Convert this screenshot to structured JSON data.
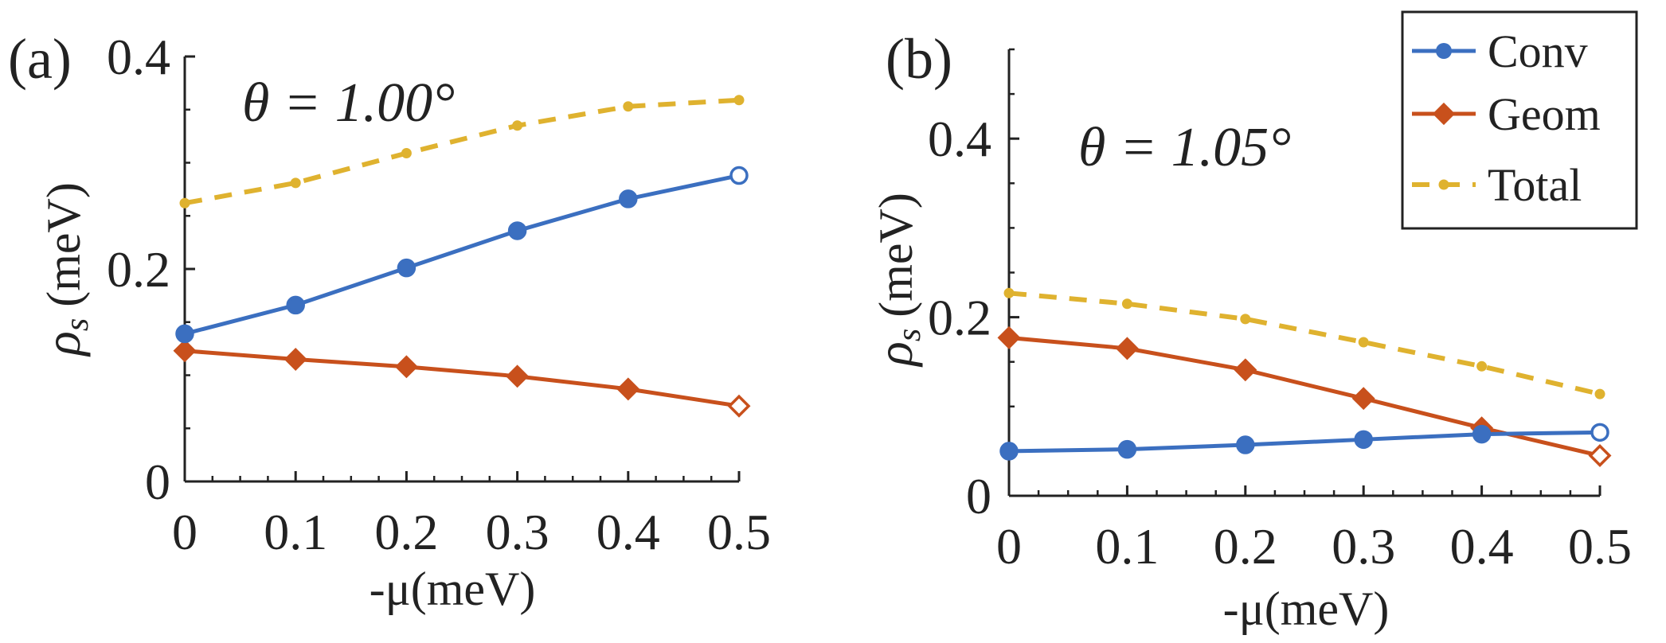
{
  "chart_data": [
    {
      "type": "line",
      "panel_label": "(a)",
      "annotation": "θ = 1.00°",
      "xlabel": "-μ(meV)",
      "ylabel_symbol": "ρ",
      "ylabel_sub": "s",
      "ylabel_units": "(meV)",
      "xlim": [
        0,
        0.5
      ],
      "ylim": [
        0,
        0.4
      ],
      "x": [
        0,
        0.1,
        0.2,
        0.3,
        0.4,
        0.5
      ],
      "xticks": [
        "0",
        "0.1",
        "0.2",
        "0.3",
        "0.4",
        "0.5"
      ],
      "yticks": [
        {
          "value": 0,
          "label": "0"
        },
        {
          "value": 0.2,
          "label": "0.2"
        },
        {
          "value": 0.4,
          "label": "0.4"
        }
      ],
      "series": [
        {
          "name": "Conv",
          "values": [
            0.139,
            0.166,
            0.201,
            0.236,
            0.266,
            0.288
          ]
        },
        {
          "name": "Geom",
          "values": [
            0.123,
            0.115,
            0.108,
            0.099,
            0.087,
            0.071
          ]
        },
        {
          "name": "Total",
          "values": [
            0.262,
            0.281,
            0.309,
            0.335,
            0.353,
            0.359
          ]
        }
      ]
    },
    {
      "type": "line",
      "panel_label": "(b)",
      "annotation": "θ = 1.05°",
      "xlabel": "-μ(meV)",
      "ylabel_symbol": "ρ",
      "ylabel_sub": "s",
      "ylabel_units": "(meV)",
      "xlim": [
        0,
        0.5
      ],
      "ylim": [
        0,
        0.5
      ],
      "x": [
        0,
        0.1,
        0.2,
        0.3,
        0.4,
        0.5
      ],
      "xticks": [
        "0",
        "0.1",
        "0.2",
        "0.3",
        "0.4",
        "0.5"
      ],
      "yticks": [
        {
          "value": 0,
          "label": "0"
        },
        {
          "value": 0.2,
          "label": "0.2"
        },
        {
          "value": 0.4,
          "label": "0.4"
        }
      ],
      "series": [
        {
          "name": "Conv",
          "values": [
            0.05,
            0.052,
            0.057,
            0.063,
            0.069,
            0.071
          ]
        },
        {
          "name": "Geom",
          "values": [
            0.177,
            0.165,
            0.141,
            0.109,
            0.076,
            0.045
          ]
        },
        {
          "name": "Total",
          "values": [
            0.227,
            0.215,
            0.198,
            0.172,
            0.145,
            0.114
          ]
        }
      ]
    }
  ],
  "legend": [
    {
      "name": "Conv",
      "label": "Conv"
    },
    {
      "name": "Geom",
      "label": "Geom"
    },
    {
      "name": "Total",
      "label": "Total"
    }
  ],
  "colors": {
    "Conv": "#3b6fc0",
    "Geom": "#c8501c",
    "Total": "#dfb22f",
    "axis": "#222222"
  }
}
